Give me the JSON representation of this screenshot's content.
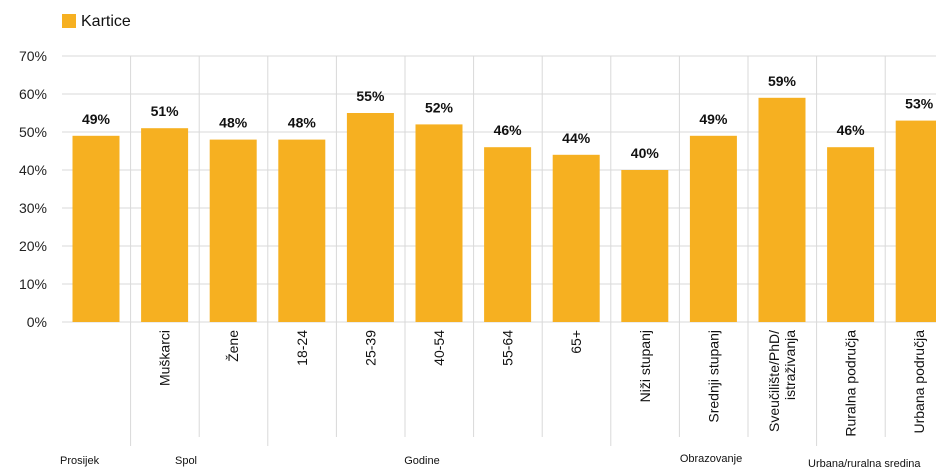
{
  "chart_data": {
    "type": "bar",
    "legend": {
      "label": "Kartice",
      "position": "top-left"
    },
    "colors": {
      "bar": "#F6B021",
      "grid": "#d9d9d9",
      "divider": "#d9d9d9"
    },
    "ylim": [
      0,
      70
    ],
    "y_ticks": [
      "0%",
      "10%",
      "20%",
      "30%",
      "40%",
      "50%",
      "60%",
      "70%"
    ],
    "y_tick_values": [
      0,
      10,
      20,
      30,
      40,
      50,
      60,
      70
    ],
    "grid": true,
    "categories": [
      "",
      "Muškarci",
      "Žene",
      "18-24",
      "25-39",
      "40-54",
      "55-64",
      "65+",
      "Niži stupanj",
      "Srednji stupanj",
      "Sveučilište/PhD/ istraživanja",
      "Ruralna područja",
      "Urbana područja"
    ],
    "series": [
      {
        "name": "Kartice",
        "values": [
          49,
          51,
          48,
          48,
          55,
          52,
          46,
          44,
          40,
          49,
          59,
          46,
          53
        ]
      }
    ],
    "data_labels": [
      "49%",
      "51%",
      "48%",
      "48%",
      "55%",
      "52%",
      "46%",
      "44%",
      "40%",
      "49%",
      "59%",
      "46%",
      "53%"
    ],
    "groups": [
      {
        "label": "Prosijek",
        "span": [
          0,
          0
        ]
      },
      {
        "label": "Spol",
        "span": [
          1,
          2
        ]
      },
      {
        "label": "Godine",
        "span": [
          3,
          7
        ]
      },
      {
        "label": "Obrazovanje",
        "span": [
          8,
          10
        ]
      },
      {
        "label": "Urbana/ruralna sredina",
        "span": [
          11,
          12
        ]
      }
    ]
  }
}
